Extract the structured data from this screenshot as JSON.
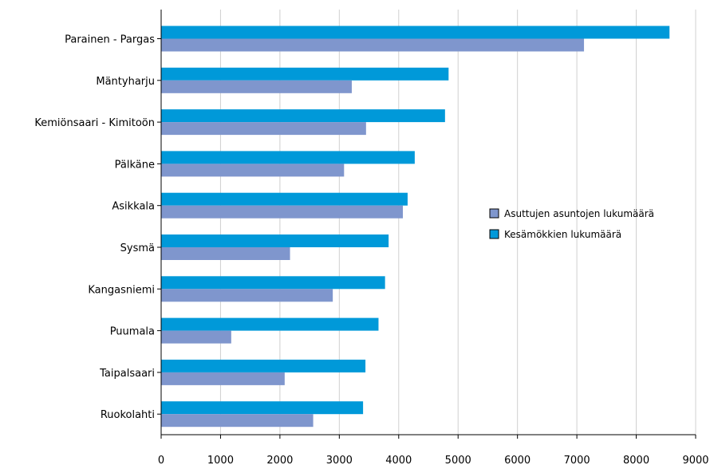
{
  "chart_data": {
    "type": "bar",
    "orientation": "horizontal",
    "categories": [
      "Parainen - Pargas",
      "Mäntyharju",
      "Kemiönsaari - Kimitoön",
      "Pälkäne",
      "Asikkala",
      "Sysmä",
      "Kangasniemi",
      "Puumala",
      "Taipalsaari",
      "Ruokolahti"
    ],
    "series": [
      {
        "name": "Kesämökkien lukumäärä",
        "color": "#0099d9",
        "values": [
          8560,
          4840,
          4780,
          4270,
          4150,
          3830,
          3770,
          3660,
          3440,
          3400
        ]
      },
      {
        "name": "Asuttujen asuntojen lukumäärä",
        "color": "#7f96cd",
        "values": [
          7120,
          3210,
          3450,
          3080,
          4070,
          2170,
          2890,
          1180,
          2080,
          2560
        ]
      }
    ],
    "xlim": [
      0,
      9000
    ],
    "xticks": [
      "0",
      "1000",
      "2000",
      "3000",
      "4000",
      "5000",
      "6000",
      "7000",
      "8000",
      "9000"
    ],
    "grid": "vertical",
    "legend_position": "right",
    "legend_order": [
      "Asuttujen asuntojen lukumäärä",
      "Kesämökkien lukumäärä"
    ]
  }
}
